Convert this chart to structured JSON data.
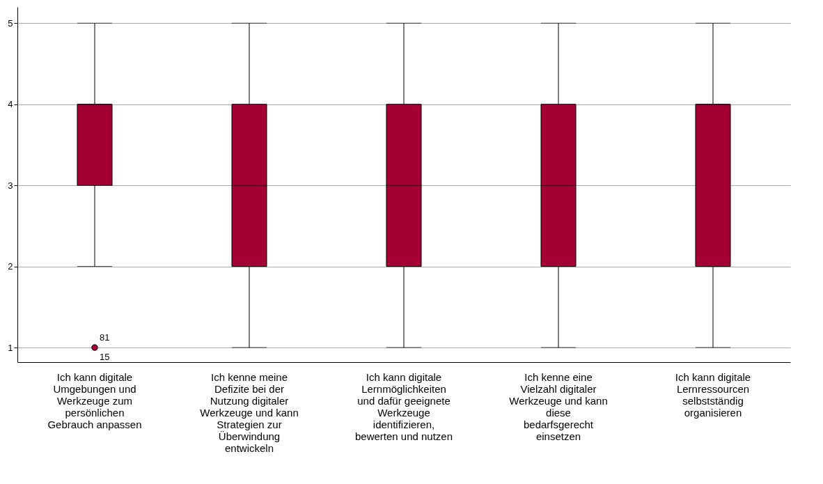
{
  "chart_data": {
    "type": "box",
    "categories": [
      "Ich kann digitale Umgebungen und Werkzeuge zum persönlichen Gebrauch anpassen",
      "Ich kenne meine Defizite bei der Nutzung digitaler Werkzeuge und kann Strategien zur Überwindung entwickeln",
      "Ich kann digitale Lernmöglichkeiten und dafür geeignete Werkzeuge identifizieren, bewerten und nutzen",
      "Ich kenne eine Vielzahl digitaler Werkzeuge und kann diese bedarfsgerecht einsetzen",
      "Ich kann digitale Lernressourcen selbstständig organisieren"
    ],
    "boxes": [
      {
        "low": 2,
        "q1": 3,
        "median": 4,
        "q3": 4,
        "high": 5,
        "outliers": [
          1
        ]
      },
      {
        "low": 1,
        "q1": 2,
        "median": 3,
        "q3": 4,
        "high": 5
      },
      {
        "low": 1,
        "q1": 2,
        "median": 3,
        "q3": 4,
        "high": 5
      },
      {
        "low": 1,
        "q1": 2,
        "median": 3,
        "q3": 4,
        "high": 5
      },
      {
        "low": 1,
        "q1": 2,
        "median": 4,
        "q3": 4,
        "high": 5
      }
    ],
    "color": "#a50034",
    "ylim": [
      0.82,
      5.2
    ],
    "yticks": [
      1,
      2,
      3,
      4,
      5
    ],
    "grid": "y",
    "annotations": [
      "81",
      "15"
    ]
  }
}
